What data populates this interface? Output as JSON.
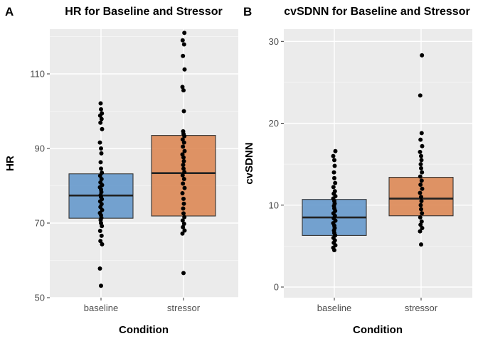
{
  "chart_data": [
    {
      "type": "box",
      "panel_label": "A",
      "title": "HR for Baseline and Stressor",
      "xlabel": "Condition",
      "ylabel": "HR",
      "ylim": [
        50,
        122
      ],
      "yticks": [
        50,
        70,
        90,
        110
      ],
      "categories": [
        "baseline",
        "stressor"
      ],
      "grid": true,
      "boxes": [
        {
          "category": "baseline",
          "q1": 71.3,
          "median": 77.4,
          "q3": 83.2,
          "color": "#6699cc"
        },
        {
          "category": "stressor",
          "q1": 71.9,
          "median": 83.4,
          "q3": 93.5,
          "color": "#dd8855"
        }
      ],
      "points": {
        "baseline": [
          53.2,
          57.8,
          64.3,
          65.2,
          66.6,
          67.9,
          69.2,
          70.0,
          70.8,
          71.4,
          72.1,
          72.7,
          73.5,
          74.3,
          75.1,
          75.8,
          76.4,
          77.0,
          77.5,
          78.3,
          79.0,
          79.6,
          80.2,
          80.9,
          81.8,
          82.7,
          83.5,
          84.6,
          86.3,
          88.7,
          90.0,
          91.6,
          95.2,
          96.9,
          97.9,
          98.8,
          99.4,
          100.5,
          102.1
        ],
        "stressor": [
          56.6,
          67.2,
          68.0,
          68.9,
          69.8,
          70.7,
          71.6,
          72.6,
          73.9,
          75.2,
          76.5,
          78.0,
          79.4,
          80.6,
          81.8,
          82.8,
          83.7,
          84.6,
          85.6,
          86.6,
          87.6,
          88.4,
          89.3,
          90.5,
          91.6,
          92.4,
          93.3,
          93.9,
          94.6,
          100.0,
          105.6,
          106.5,
          111.2,
          114.8,
          117.9,
          119.0,
          121.0
        ]
      }
    },
    {
      "type": "box",
      "panel_label": "B",
      "title": "cvSDNN for Baseline and Stressor",
      "xlabel": "Condition",
      "ylabel": "cvSDNN",
      "ylim": [
        -1.3,
        31.5
      ],
      "yticks": [
        0,
        10,
        20,
        30
      ],
      "categories": [
        "baseline",
        "stressor"
      ],
      "grid": true,
      "boxes": [
        {
          "category": "baseline",
          "q1": 6.3,
          "median": 8.5,
          "q3": 10.7,
          "color": "#6699cc"
        },
        {
          "category": "stressor",
          "q1": 8.7,
          "median": 10.8,
          "q3": 13.4,
          "color": "#dd8855"
        }
      ],
      "points": {
        "baseline": [
          4.5,
          4.8,
          5.1,
          5.4,
          5.7,
          6.0,
          6.3,
          6.6,
          6.9,
          7.2,
          7.5,
          7.8,
          8.1,
          8.4,
          8.7,
          9.0,
          9.3,
          9.6,
          9.9,
          10.2,
          10.5,
          10.8,
          11.1,
          11.4,
          11.7,
          12.2,
          12.7,
          13.3,
          14.0,
          14.8,
          15.5,
          16.0,
          16.6
        ],
        "stressor": [
          5.2,
          6.8,
          7.2,
          7.6,
          8.0,
          8.5,
          9.0,
          9.5,
          10.0,
          10.5,
          11.0,
          11.5,
          12.0,
          12.5,
          13.0,
          13.5,
          14.0,
          14.5,
          15.0,
          15.5,
          16.0,
          16.5,
          17.2,
          18.0,
          18.8,
          23.4,
          28.3
        ]
      }
    }
  ]
}
